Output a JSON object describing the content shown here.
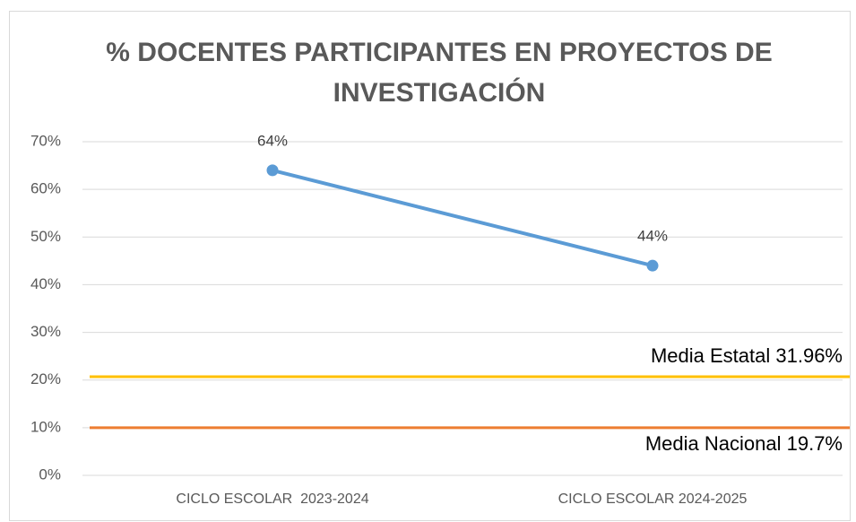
{
  "chart_data": {
    "type": "line",
    "title": [
      "% DOCENTES PARTICIPANTES EN PROYECTOS DE",
      "INVESTIGACIÓN"
    ],
    "categories": [
      "CICLO ESCOLAR  2023-2024",
      "CICLO ESCOLAR 2024-2025"
    ],
    "series": [
      {
        "color": "#5b9bd5",
        "values": [
          64,
          44
        ],
        "value_labels": [
          "64%",
          "44%"
        ]
      }
    ],
    "ylim": [
      0,
      70
    ],
    "yticks": [
      {
        "value": 0,
        "label": "0%"
      },
      {
        "value": 10,
        "label": "10%"
      },
      {
        "value": 20,
        "label": "20%"
      },
      {
        "value": 30,
        "label": "30%"
      },
      {
        "value": 40,
        "label": "40%"
      },
      {
        "value": 50,
        "label": "50%"
      },
      {
        "value": 60,
        "label": "60%"
      },
      {
        "value": 70,
        "label": "70%"
      }
    ],
    "grid": true,
    "reference_lines": [
      {
        "value": 20.7,
        "color": "#ffc000"
      },
      {
        "value": 10,
        "color": "#ed7d31"
      }
    ],
    "annotations": [
      "Media Estatal 31.96%",
      "Media Nacional 19.7%"
    ]
  }
}
